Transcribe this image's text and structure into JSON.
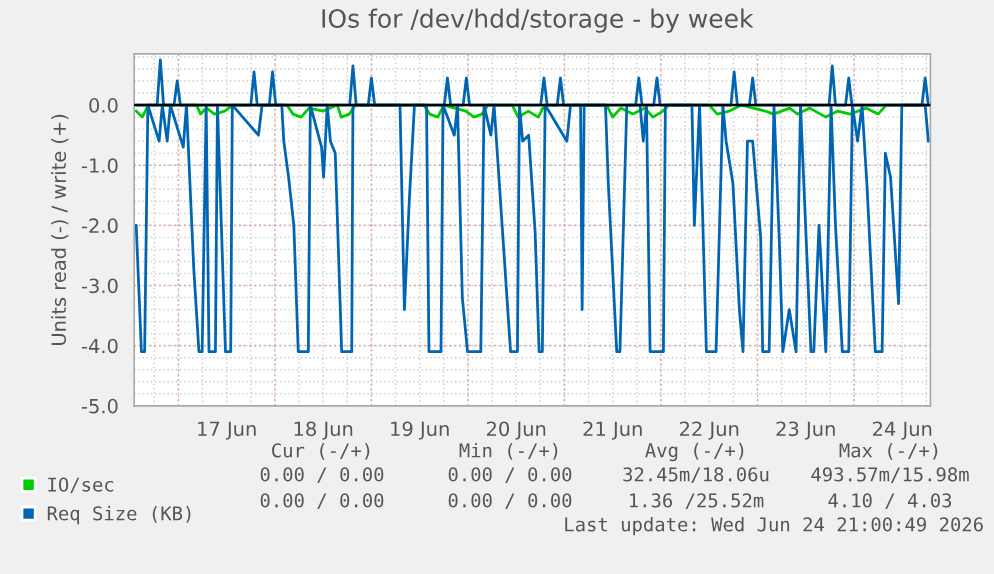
{
  "chart_data": {
    "type": "line",
    "title": "IOs for /dev/hdd/storage - by week",
    "ylabel": "Units read (-) / write (+)",
    "xlim": [
      "2026-06-16T13:00",
      "2026-06-24T19:00"
    ],
    "ylim": [
      -5.0,
      0.85
    ],
    "yticks": [
      {
        "value": -5,
        "label": "-5.0"
      },
      {
        "value": -4,
        "label": "-4.0"
      },
      {
        "value": -3,
        "label": "-3.0"
      },
      {
        "value": -2,
        "label": "-2.0"
      },
      {
        "value": -1,
        "label": "-1.0"
      },
      {
        "value": 0,
        "label": "0.0"
      }
    ],
    "xticks": [
      {
        "value": "2026-06-17T00:00",
        "label": null
      },
      {
        "value": "2026-06-17T12:00",
        "label": "17 Jun"
      },
      {
        "value": "2026-06-18T00:00",
        "label": null
      },
      {
        "value": "2026-06-18T12:00",
        "label": "18 Jun"
      },
      {
        "value": "2026-06-19T00:00",
        "label": null
      },
      {
        "value": "2026-06-19T12:00",
        "label": "19 Jun"
      },
      {
        "value": "2026-06-20T00:00",
        "label": null
      },
      {
        "value": "2026-06-20T12:00",
        "label": "20 Jun"
      },
      {
        "value": "2026-06-21T00:00",
        "label": null
      },
      {
        "value": "2026-06-21T12:00",
        "label": "21 Jun"
      },
      {
        "value": "2026-06-22T00:00",
        "label": null
      },
      {
        "value": "2026-06-22T12:00",
        "label": "22 Jun"
      },
      {
        "value": "2026-06-23T00:00",
        "label": null
      },
      {
        "value": "2026-06-23T12:00",
        "label": "23 Jun"
      },
      {
        "value": "2026-06-24T00:00",
        "label": null
      },
      {
        "value": "2026-06-24T12:00",
        "label": "24 Jun"
      }
    ],
    "grid": true,
    "legend": "bottom",
    "marker": "none",
    "line_style": "solid",
    "ref_lines": [
      {
        "axis": "y",
        "value": 0,
        "color": "#000000"
      }
    ],
    "series": [
      {
        "name": "IO/sec",
        "color": "#00cc00",
        "x": [
          "2026-06-16T13:30",
          "2026-06-16T15:00",
          "2026-06-16T16:30",
          "2026-06-17T04:30",
          "2026-06-17T05:30",
          "2026-06-17T07:00",
          "2026-06-17T09:00",
          "2026-06-17T11:30",
          "2026-06-17T13:30",
          "2026-06-18T03:00",
          "2026-06-18T04:30",
          "2026-06-18T06:30",
          "2026-06-18T08:30",
          "2026-06-18T12:00",
          "2026-06-18T15:30",
          "2026-06-18T16:30",
          "2026-06-18T18:30",
          "2026-06-18T20:00",
          "2026-06-19T13:00",
          "2026-06-19T14:30",
          "2026-06-19T16:30",
          "2026-06-19T18:00",
          "2026-06-19T23:30",
          "2026-06-20T01:30",
          "2026-06-20T03:30",
          "2026-06-20T05:00",
          "2026-06-20T11:00",
          "2026-06-20T12:30",
          "2026-06-20T15:00",
          "2026-06-20T17:30",
          "2026-06-20T19:00",
          "2026-06-21T10:30",
          "2026-06-21T12:00",
          "2026-06-21T14:00",
          "2026-06-21T17:00",
          "2026-06-21T20:00",
          "2026-06-21T22:00",
          "2026-06-22T00:30",
          "2026-06-22T02:00",
          "2026-06-22T12:00",
          "2026-06-22T14:00",
          "2026-06-22T17:00",
          "2026-06-22T20:00",
          "2026-06-23T02:00",
          "2026-06-23T04:00",
          "2026-06-23T08:00",
          "2026-06-23T10:00",
          "2026-06-23T13:00",
          "2026-06-23T17:00",
          "2026-06-23T20:00",
          "2026-06-23T23:00",
          "2026-06-24T03:00",
          "2026-06-24T06:00",
          "2026-06-24T08:00",
          "2026-06-24T18:30"
        ],
        "values": [
          -0.1,
          -0.2,
          0,
          0,
          -0.15,
          -0.05,
          -0.15,
          -0.1,
          0,
          0,
          -0.15,
          -0.2,
          -0.05,
          -0.1,
          0,
          -0.2,
          -0.15,
          0,
          0,
          -0.15,
          -0.2,
          0,
          -0.1,
          -0.2,
          -0.15,
          0,
          0,
          -0.2,
          -0.1,
          -0.2,
          0,
          0,
          -0.2,
          -0.05,
          -0.15,
          -0.05,
          -0.2,
          -0.1,
          0,
          0,
          -0.15,
          -0.1,
          0,
          -0.1,
          -0.15,
          -0.05,
          -0.15,
          -0.05,
          -0.2,
          -0.1,
          -0.15,
          -0.05,
          -0.15,
          0,
          0
        ]
      },
      {
        "name": "Req Size (KB)",
        "color": "#0066b3",
        "x": [
          "2026-06-16T13:30",
          "2026-06-16T14:48",
          "2026-06-16T15:36",
          "2026-06-16T16:24",
          "2026-06-16T19:12",
          "2026-06-16T20:00",
          "2026-06-16T21:12",
          "2026-06-16T22:00",
          "2026-06-17T01:12",
          "2026-06-17T02:00",
          "2026-06-17T03:48",
          "2026-06-17T05:06",
          "2026-06-17T05:54",
          "2026-06-17T06:54",
          "2026-06-17T07:36",
          "2026-06-17T09:12",
          "2026-06-17T09:42",
          "2026-06-17T11:42",
          "2026-06-17T13:00",
          "2026-06-17T13:24",
          "2026-06-17T19:54",
          "2026-06-17T20:48",
          "2026-06-18T01:42",
          "2026-06-18T02:12",
          "2026-06-18T03:24",
          "2026-06-18T04:42",
          "2026-06-18T05:48",
          "2026-06-18T08:18",
          "2026-06-18T08:48",
          "2026-06-18T11:36",
          "2026-06-18T12:06",
          "2026-06-18T13:00",
          "2026-06-18T13:48",
          "2026-06-18T15:00",
          "2026-06-18T16:36",
          "2026-06-18T19:06",
          "2026-06-18T19:24",
          "2026-06-19T07:06",
          "2026-06-19T08:12",
          "2026-06-19T09:24",
          "2026-06-19T10:42",
          "2026-06-19T13:42",
          "2026-06-19T14:18",
          "2026-06-19T17:18",
          "2026-06-19T17:48",
          "2026-06-19T20:36",
          "2026-06-19T21:24",
          "2026-06-19T22:36",
          "2026-06-19T23:54",
          "2026-06-20T03:12",
          "2026-06-20T04:00",
          "2026-06-20T05:42",
          "2026-06-20T06:30",
          "2026-06-20T10:36",
          "2026-06-20T12:18",
          "2026-06-20T12:48",
          "2026-06-20T13:36",
          "2026-06-20T15:06",
          "2026-06-20T16:42",
          "2026-06-20T17:42",
          "2026-06-20T18:30",
          "2026-06-20T19:12",
          "2026-06-21T00:36",
          "2026-06-21T01:30",
          "2026-06-21T04:00",
          "2026-06-21T04:24",
          "2026-06-21T04:54",
          "2026-06-21T10:12",
          "2026-06-21T10:54",
          "2026-06-21T13:00",
          "2026-06-21T13:48",
          "2026-06-21T15:30",
          "2026-06-21T18:48",
          "2026-06-21T19:36",
          "2026-06-21T20:24",
          "2026-06-21T21:18",
          "2026-06-22T00:36",
          "2026-06-22T01:06",
          "2026-06-22T07:42",
          "2026-06-22T08:18",
          "2026-06-22T09:36",
          "2026-06-22T11:18",
          "2026-06-22T13:42",
          "2026-06-22T15:24",
          "2026-06-22T16:12",
          "2026-06-22T17:54",
          "2026-06-22T19:30",
          "2026-06-22T20:24",
          "2026-06-22T21:30",
          "2026-06-22T22:48",
          "2026-06-23T00:48",
          "2026-06-23T01:18",
          "2026-06-23T02:54",
          "2026-06-23T04:06",
          "2026-06-23T05:24",
          "2026-06-23T06:18",
          "2026-06-23T07:54",
          "2026-06-23T09:36",
          "2026-06-23T10:42",
          "2026-06-23T13:18",
          "2026-06-23T14:00",
          "2026-06-23T15:18",
          "2026-06-23T17:00",
          "2026-06-23T18:18",
          "2026-06-23T19:24",
          "2026-06-23T21:06",
          "2026-06-23T22:42",
          "2026-06-23T23:36",
          "2026-06-24T00:54",
          "2026-06-24T02:00",
          "2026-06-24T03:12",
          "2026-06-24T05:18",
          "2026-06-24T07:00",
          "2026-06-24T07:48",
          "2026-06-24T09:06",
          "2026-06-24T11:06",
          "2026-06-24T11:54",
          "2026-06-24T17:42",
          "2026-06-24T18:30"
        ],
        "values": [
          -2.0,
          -4.1,
          -4.1,
          0,
          -0.6,
          0,
          -0.6,
          0,
          -0.7,
          0,
          -2.7,
          -4.1,
          -4.1,
          0,
          -4.1,
          -4.1,
          0,
          -4.1,
          -4.1,
          0,
          -0.5,
          0,
          0,
          -0.6,
          -1.2,
          -2.0,
          -4.1,
          -4.1,
          0,
          -0.7,
          -1.2,
          0,
          -0.6,
          -0.8,
          -4.1,
          -4.1,
          0,
          0,
          -3.4,
          -1.6,
          0,
          0,
          -4.1,
          -4.1,
          0,
          -0.5,
          0,
          -3.2,
          -4.1,
          -4.1,
          0,
          -0.5,
          0,
          -4.1,
          -4.1,
          0,
          -0.6,
          -0.5,
          -2.1,
          -4.1,
          -4.1,
          0,
          -0.6,
          0,
          0,
          -3.4,
          0,
          0,
          -1.3,
          -4.1,
          -4.1,
          0,
          0,
          -0.6,
          0,
          -4.1,
          -4.1,
          0,
          0,
          -2.0,
          0,
          -4.1,
          -4.1,
          0,
          -0.6,
          -1.3,
          -3.4,
          -4.1,
          -0.6,
          -0.6,
          -2.2,
          -4.1,
          -4.1,
          0,
          -2.2,
          -4.1,
          -3.4,
          -4.1,
          0,
          -4.1,
          -4.1,
          -2.0,
          -4.1,
          0,
          -2.0,
          -4.1,
          -4.1,
          0,
          -0.6,
          0,
          -1.3,
          -4.1,
          -4.1,
          -0.8,
          -1.2,
          -3.3,
          0,
          0,
          -0.6
        ]
      },
      {
        "color": "#0066b3",
        "x": [
          "2026-06-16T13:30",
          "2026-06-16T18:42",
          "2026-06-16T19:30",
          "2026-06-16T20:18",
          "2026-06-16T22:54",
          "2026-06-16T23:42",
          "2026-06-17T00:30",
          "2026-06-17T18:00",
          "2026-06-17T18:48",
          "2026-06-17T19:36",
          "2026-06-17T22:36",
          "2026-06-17T23:24",
          "2026-06-18T00:12",
          "2026-06-18T18:36",
          "2026-06-18T19:24",
          "2026-06-18T20:12",
          "2026-06-18T23:12",
          "2026-06-19T00:00",
          "2026-06-19T00:48",
          "2026-06-19T18:06",
          "2026-06-19T18:54",
          "2026-06-19T19:42",
          "2026-06-19T22:48",
          "2026-06-19T23:36",
          "2026-06-20T00:24",
          "2026-06-20T18:06",
          "2026-06-20T18:54",
          "2026-06-20T19:42",
          "2026-06-20T22:12",
          "2026-06-20T23:00",
          "2026-06-20T23:48",
          "2026-06-21T17:42",
          "2026-06-21T18:30",
          "2026-06-21T19:18",
          "2026-06-21T22:12",
          "2026-06-21T23:00",
          "2026-06-21T23:48",
          "2026-06-22T17:24",
          "2026-06-22T18:12",
          "2026-06-22T19:00",
          "2026-06-22T22:00",
          "2026-06-22T22:48",
          "2026-06-22T23:36",
          "2026-06-23T17:48",
          "2026-06-23T18:36",
          "2026-06-23T19:24",
          "2026-06-23T21:54",
          "2026-06-23T22:42",
          "2026-06-23T23:30",
          "2026-06-24T16:54",
          "2026-06-24T17:42",
          "2026-06-24T18:30"
        ],
        "values": [
          0,
          0,
          0.75,
          0,
          0,
          0.4,
          0,
          0,
          0.55,
          0,
          0,
          0.55,
          0,
          0,
          0.65,
          0,
          0,
          0.45,
          0,
          0,
          0.45,
          0,
          0,
          0.45,
          0,
          0,
          0.45,
          0,
          0,
          0.45,
          0,
          0,
          0.45,
          0,
          0,
          0.45,
          0,
          0,
          0.55,
          0,
          0,
          0.45,
          0,
          0,
          0.65,
          0,
          0,
          0.45,
          0,
          0,
          0.45,
          0
        ]
      }
    ],
    "annotations": [
      "Cur (-/+)",
      "Min (-/+)",
      "Avg (-/+)",
      "Max (-/+)",
      "0.00 / 0.00",
      "0.00 / 0.00",
      "32.45m/18.06u",
      "493.57m/15.98m",
      "0.00 / 0.00",
      "0.00 / 0.00",
      "1.36 /25.52m",
      "4.10 / 4.03",
      "Last update: Wed Jun 24 21:00:49 2026"
    ]
  }
}
